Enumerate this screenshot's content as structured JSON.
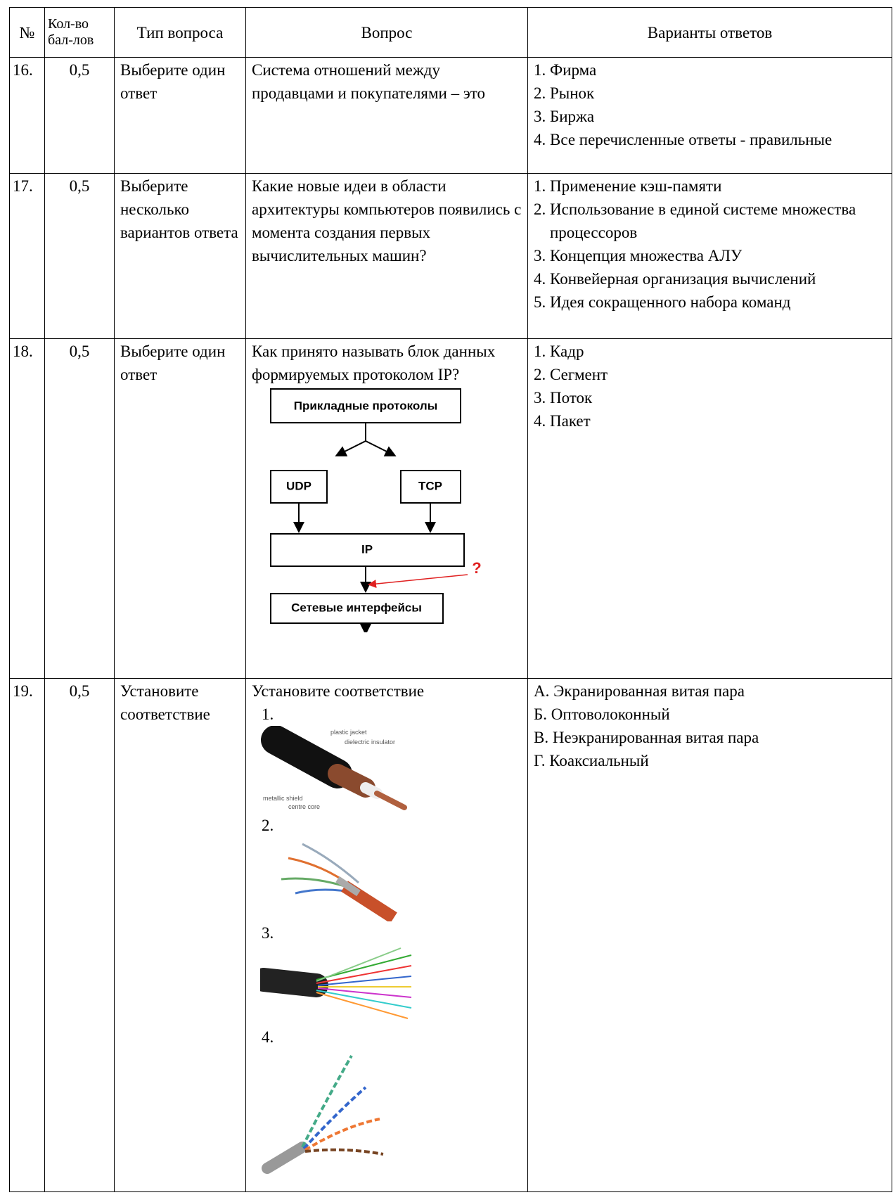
{
  "table": {
    "headers": [
      "№",
      "Кол-во бал-лов",
      "Тип вопроса",
      "Вопрос",
      "Варианты ответов"
    ],
    "rows": [
      {
        "number": "16.",
        "points": "0,5",
        "type": "Выберите один ответ",
        "question": "Система отношений между продавцами и покупателями – это",
        "answers": [
          "1. Фирма",
          "2. Рынок",
          "3. Биржа",
          "4. Все перечисленные ответы - правильные"
        ]
      },
      {
        "number": "17.",
        "points": "0,5",
        "type": "Выберите несколько вариантов ответа",
        "question": "Какие новые идеи в области архитектуры компьютеров появились с момента создания первых вычислительных машин?",
        "answers": [
          "1. Применение кэш-памяти",
          "2. Использование в единой системе множества процессоров",
          "3. Концепция множества АЛУ",
          "4. Конвейерная организация вычислений",
          "5. Идея сокращенного набора команд"
        ]
      },
      {
        "number": "18.",
        "points": "0,5",
        "type": "Выберите один ответ",
        "question": "Как принято называть блок данных формируемых протоколом IP?",
        "diagram": {
          "labels": [
            "Прикладные протоколы",
            "UDP",
            "TCP",
            "IP",
            "Сетевые интерфейсы"
          ],
          "marker": "?"
        },
        "answers": [
          "1. Кадр",
          "2. Сегмент",
          "3. Поток",
          "4. Пакет"
        ]
      },
      {
        "number": "19.",
        "points": "0,5",
        "type": "Установите соответствие",
        "question": "Установите соответствие",
        "images": [
          {
            "label": "1.",
            "captions": [
              "plastic jacket",
              "dielectric insulator",
              "metallic shield",
              "centre core"
            ]
          },
          {
            "label": "2."
          },
          {
            "label": "3."
          },
          {
            "label": "4."
          }
        ],
        "answers": [
          "А. Экранированная витая пара",
          "Б. Оптоволоконный",
          "В. Неэкранированная витая пара",
          "Г. Коаксиальный"
        ]
      }
    ]
  }
}
